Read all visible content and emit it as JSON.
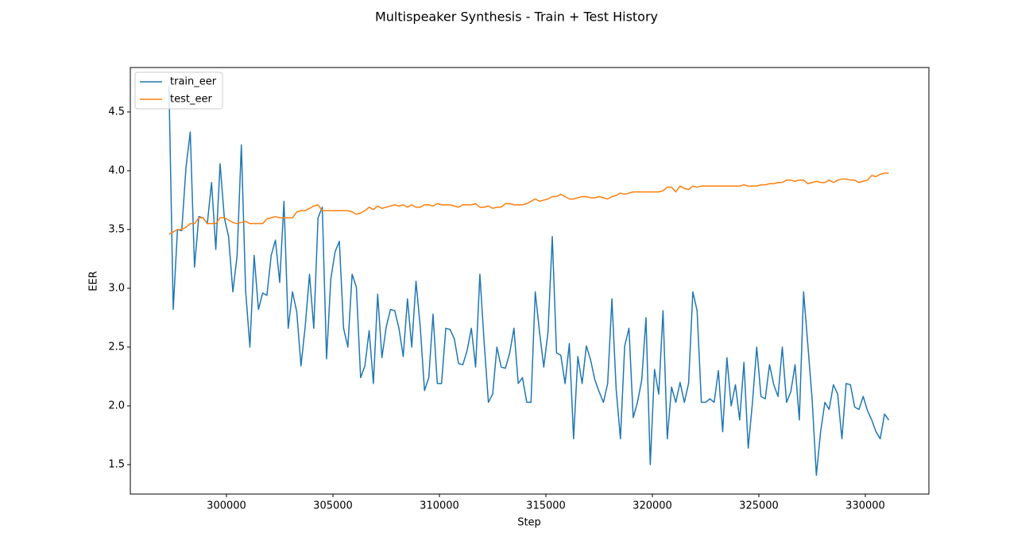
{
  "chart_data": {
    "type": "line",
    "title": "Multispeaker Synthesis - Train + Test History",
    "xlabel": "Step",
    "ylabel": "EER",
    "x": [
      297300,
      297500,
      297700,
      297900,
      298100,
      298300,
      298500,
      298700,
      298900,
      299100,
      299300,
      299500,
      299700,
      299900,
      300100,
      300300,
      300500,
      300700,
      300900,
      301100,
      301300,
      301500,
      301700,
      301900,
      302100,
      302300,
      302500,
      302700,
      302900,
      303100,
      303300,
      303500,
      303700,
      303900,
      304100,
      304300,
      304500,
      304700,
      304900,
      305100,
      305300,
      305500,
      305700,
      305900,
      306100,
      306300,
      306500,
      306700,
      306900,
      307100,
      307300,
      307500,
      307700,
      307900,
      308100,
      308300,
      308500,
      308700,
      308900,
      309100,
      309300,
      309500,
      309700,
      309900,
      310100,
      310300,
      310500,
      310700,
      310900,
      311100,
      311300,
      311500,
      311700,
      311900,
      312100,
      312300,
      312500,
      312700,
      312900,
      313100,
      313300,
      313500,
      313700,
      313900,
      314100,
      314300,
      314500,
      314700,
      314900,
      315100,
      315300,
      315500,
      315700,
      315900,
      316100,
      316300,
      316500,
      316700,
      316900,
      317100,
      317300,
      317500,
      317700,
      317900,
      318100,
      318300,
      318500,
      318700,
      318900,
      319100,
      319300,
      319500,
      319700,
      319900,
      320100,
      320300,
      320500,
      320700,
      320900,
      321100,
      321300,
      321500,
      321700,
      321900,
      322100,
      322300,
      322500,
      322700,
      322900,
      323100,
      323300,
      323500,
      323700,
      323900,
      324100,
      324300,
      324500,
      324700,
      324900,
      325100,
      325300,
      325500,
      325700,
      325900,
      326100,
      326300,
      326500,
      326700,
      326900,
      327100,
      327300,
      327500,
      327700,
      327900,
      328100,
      328300,
      328500,
      328700,
      328900,
      329100,
      329300,
      329500,
      329700,
      329900,
      330100,
      330300,
      330500,
      330700,
      330900,
      331100
    ],
    "series": [
      {
        "name": "train_eer",
        "color": "#1f77b4",
        "values": [
          4.72,
          2.82,
          3.5,
          3.49,
          4.03,
          4.33,
          3.18,
          3.61,
          3.6,
          3.55,
          3.9,
          3.33,
          4.06,
          3.6,
          3.44,
          2.97,
          3.28,
          4.22,
          2.98,
          2.5,
          3.28,
          2.82,
          2.96,
          2.94,
          3.28,
          3.41,
          3.05,
          3.74,
          2.66,
          2.97,
          2.8,
          2.34,
          2.68,
          3.12,
          2.66,
          3.6,
          3.69,
          2.4,
          3.08,
          3.31,
          3.4,
          2.66,
          2.5,
          3.12,
          3.01,
          2.24,
          2.34,
          2.64,
          2.19,
          2.95,
          2.41,
          2.67,
          2.82,
          2.81,
          2.66,
          2.42,
          2.91,
          2.5,
          3.06,
          2.67,
          2.13,
          2.24,
          2.78,
          2.19,
          2.19,
          2.66,
          2.65,
          2.57,
          2.36,
          2.35,
          2.47,
          2.66,
          2.33,
          3.12,
          2.54,
          2.03,
          2.1,
          2.5,
          2.33,
          2.32,
          2.45,
          2.66,
          2.19,
          2.24,
          2.03,
          2.03,
          2.97,
          2.63,
          2.33,
          2.63,
          3.44,
          2.45,
          2.43,
          2.19,
          2.53,
          1.72,
          2.42,
          2.19,
          2.51,
          2.39,
          2.22,
          2.12,
          2.03,
          2.19,
          2.91,
          2.14,
          1.72,
          2.51,
          2.66,
          1.9,
          2.03,
          2.22,
          2.75,
          1.5,
          2.31,
          2.1,
          2.81,
          1.72,
          2.16,
          2.03,
          2.2,
          2.03,
          2.19,
          2.97,
          2.81,
          2.03,
          2.03,
          2.06,
          2.03,
          2.3,
          1.78,
          2.41,
          2.0,
          2.18,
          1.88,
          2.37,
          1.64,
          2.03,
          2.5,
          2.08,
          2.06,
          2.35,
          2.18,
          2.08,
          2.5,
          2.03,
          2.12,
          2.35,
          1.88,
          2.97,
          2.52,
          2.06,
          1.41,
          1.78,
          2.03,
          1.97,
          2.18,
          2.1,
          1.72,
          2.19,
          2.18,
          1.99,
          1.97,
          2.08,
          1.96,
          1.88,
          1.78,
          1.72,
          1.93,
          1.88
        ]
      },
      {
        "name": "test_eer",
        "color": "#ff7f0e",
        "values": [
          3.46,
          3.48,
          3.5,
          3.5,
          3.52,
          3.55,
          3.55,
          3.6,
          3.6,
          3.55,
          3.55,
          3.55,
          3.6,
          3.6,
          3.58,
          3.56,
          3.55,
          3.56,
          3.57,
          3.55,
          3.55,
          3.55,
          3.55,
          3.59,
          3.6,
          3.61,
          3.6,
          3.6,
          3.6,
          3.6,
          3.65,
          3.66,
          3.66,
          3.68,
          3.7,
          3.71,
          3.66,
          3.66,
          3.66,
          3.66,
          3.66,
          3.66,
          3.66,
          3.65,
          3.63,
          3.64,
          3.66,
          3.69,
          3.67,
          3.7,
          3.68,
          3.69,
          3.7,
          3.71,
          3.7,
          3.71,
          3.69,
          3.71,
          3.69,
          3.69,
          3.71,
          3.71,
          3.7,
          3.72,
          3.71,
          3.71,
          3.71,
          3.7,
          3.69,
          3.71,
          3.71,
          3.71,
          3.72,
          3.69,
          3.69,
          3.7,
          3.68,
          3.69,
          3.69,
          3.72,
          3.72,
          3.71,
          3.71,
          3.71,
          3.72,
          3.74,
          3.76,
          3.74,
          3.75,
          3.76,
          3.78,
          3.78,
          3.8,
          3.78,
          3.76,
          3.76,
          3.77,
          3.78,
          3.78,
          3.77,
          3.77,
          3.78,
          3.77,
          3.76,
          3.78,
          3.79,
          3.81,
          3.8,
          3.81,
          3.82,
          3.82,
          3.82,
          3.82,
          3.82,
          3.82,
          3.82,
          3.83,
          3.86,
          3.86,
          3.82,
          3.87,
          3.85,
          3.84,
          3.87,
          3.86,
          3.87,
          3.87,
          3.87,
          3.87,
          3.87,
          3.87,
          3.87,
          3.87,
          3.87,
          3.87,
          3.88,
          3.87,
          3.87,
          3.87,
          3.88,
          3.88,
          3.89,
          3.89,
          3.9,
          3.9,
          3.92,
          3.92,
          3.91,
          3.92,
          3.92,
          3.89,
          3.9,
          3.91,
          3.9,
          3.9,
          3.92,
          3.9,
          3.92,
          3.93,
          3.93,
          3.92,
          3.92,
          3.9,
          3.91,
          3.92,
          3.96,
          3.95,
          3.97,
          3.98,
          3.98
        ]
      }
    ],
    "xlim": [
      295485,
      332985
    ],
    "ylim": [
      1.25,
      4.878
    ],
    "xticks": [
      300000,
      305000,
      310000,
      315000,
      320000,
      325000,
      330000
    ],
    "yticks": [
      1.5,
      {
        "value": 2,
        "label": "2.0"
      },
      2.5,
      {
        "value": 3,
        "label": "3.0"
      },
      3.5,
      {
        "value": 4,
        "label": "4.0"
      },
      4.5
    ],
    "legend": "upper left",
    "grid": false
  }
}
